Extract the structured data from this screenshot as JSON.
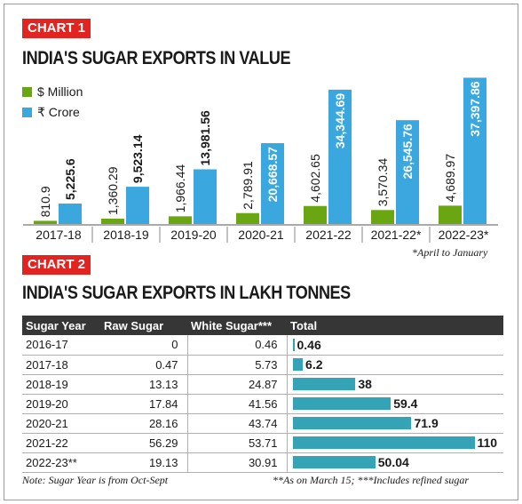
{
  "chart1": {
    "tag": "CHART 1",
    "title": "INDIA'S SUGAR EXPORTS IN VALUE",
    "legend": [
      {
        "label": "$ Million",
        "color": "#6aa512"
      },
      {
        "label": "₹ Crore",
        "color": "#3aa7de"
      }
    ],
    "footnote": "*April to January"
  },
  "chart_data": [
    {
      "type": "bar",
      "title": "INDIA'S SUGAR EXPORTS IN VALUE",
      "xlabel": "",
      "ylabel": "",
      "categories": [
        "2017-18",
        "2018-19",
        "2019-20",
        "2020-21",
        "2021-22",
        "2021-22*",
        "2022-23*"
      ],
      "series": [
        {
          "name": "$ Million",
          "color": "#6aa512",
          "values": [
            810.9,
            1360.29,
            1966.44,
            2789.91,
            4602.65,
            3570.34,
            4689.97
          ],
          "labels": [
            "810.9",
            "1,360.29",
            "1,966.44",
            "2,789.91",
            "4,602.65",
            "3,570.34",
            "4,689.97"
          ]
        },
        {
          "name": "₹ Crore",
          "color": "#3aa7de",
          "values": [
            5225.6,
            9523.14,
            13981.56,
            20668.57,
            34344.69,
            26545.76,
            37397.86
          ],
          "labels": [
            "5,225.6",
            "9,523.14",
            "13,981.56",
            "20,668.57",
            "34,344.69",
            "26,545.76",
            "37,397.86"
          ]
        }
      ],
      "ylim": [
        0,
        40000
      ],
      "grid": false,
      "legend_position": "top-left"
    },
    {
      "type": "table",
      "title": "INDIA'S SUGAR EXPORTS IN LAKH TONNES",
      "columns": [
        "Sugar Year",
        "Raw Sugar",
        "White Sugar***",
        "Total"
      ],
      "rows": [
        {
          "year": "2016-17",
          "raw": "0",
          "white": "0.46",
          "total": 0.46,
          "total_label": "0.46"
        },
        {
          "year": "2017-18",
          "raw": "0.47",
          "white": "5.73",
          "total": 6.2,
          "total_label": "6.2"
        },
        {
          "year": "2018-19",
          "raw": "13.13",
          "white": "24.87",
          "total": 38,
          "total_label": "38"
        },
        {
          "year": "2019-20",
          "raw": "17.84",
          "white": "41.56",
          "total": 59.4,
          "total_label": "59.4"
        },
        {
          "year": "2020-21",
          "raw": "28.16",
          "white": "43.74",
          "total": 71.9,
          "total_label": "71.9"
        },
        {
          "year": "2021-22",
          "raw": "56.29",
          "white": "53.71",
          "total": 110,
          "total_label": "110"
        },
        {
          "year": "2022-23**",
          "raw": "19.13",
          "white": "30.91",
          "total": 50.04,
          "total_label": "50.04"
        }
      ],
      "total_bar_color": "#34a3b5"
    }
  ],
  "chart2": {
    "tag": "CHART 2",
    "title": "INDIA'S SUGAR EXPORTS IN LAKH TONNES",
    "note_left": "Note: Sugar Year is from Oct-Sept",
    "note_right": "**As on March 15; ***Includes refined sugar"
  }
}
